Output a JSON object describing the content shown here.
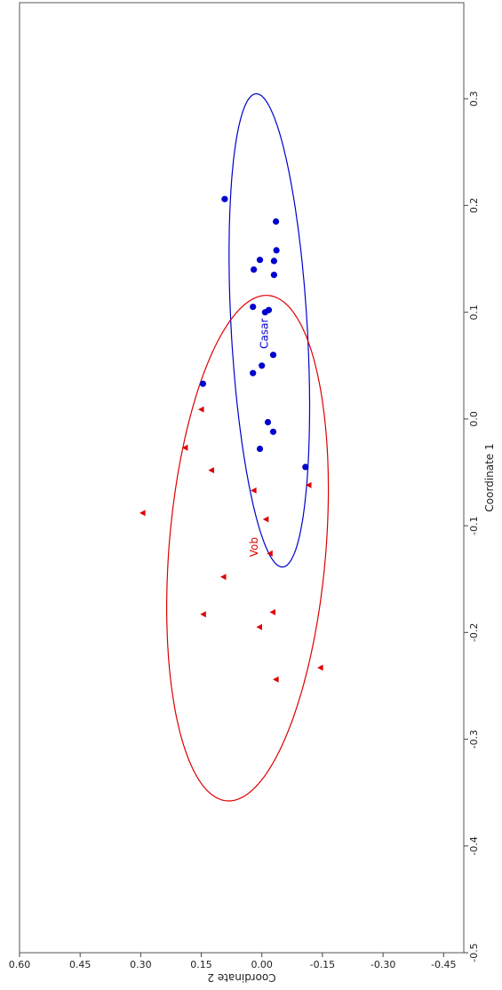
{
  "chart_data": {
    "type": "scatter",
    "orientation_note": "rotated-90",
    "xlabel": "Coordinate 1",
    "ylabel": "Coordinate 2",
    "xlim": [
      -0.5,
      0.39
    ],
    "ylim": [
      -0.5,
      0.6
    ],
    "x_ticks": [
      -0.5,
      -0.4,
      -0.3,
      -0.2,
      -0.1,
      0.0,
      0.1,
      0.2,
      0.3
    ],
    "x_tick_labels": [
      "-0.5",
      "-0.4",
      "-0.3",
      "-0.2",
      "-0.1",
      "0.0",
      "0.1",
      "0.2",
      "0.3"
    ],
    "y_ticks": [
      -0.45,
      -0.3,
      -0.15,
      0.0,
      0.15,
      0.3,
      0.45,
      0.6
    ],
    "y_tick_labels": [
      "-0.45",
      "-0.30",
      "-0.15",
      "0.00",
      "0.15",
      "0.30",
      "0.45",
      "0.60"
    ],
    "grid": false,
    "series": [
      {
        "name": "Casar",
        "marker": "circle",
        "color": "#0000cc",
        "label_pos": [
          0.08,
          -0.015
        ],
        "points": [
          [
            0.206,
            0.092
          ],
          [
            0.185,
            -0.035
          ],
          [
            0.158,
            -0.036
          ],
          [
            0.148,
            -0.03
          ],
          [
            0.149,
            0.005
          ],
          [
            0.14,
            0.02
          ],
          [
            0.135,
            -0.03
          ],
          [
            0.105,
            0.022
          ],
          [
            0.102,
            -0.017
          ],
          [
            0.1,
            -0.008
          ],
          [
            0.06,
            -0.028
          ],
          [
            0.05,
            0.0
          ],
          [
            0.043,
            0.022
          ],
          [
            0.033,
            0.146
          ],
          [
            -0.003,
            -0.015
          ],
          [
            -0.012,
            -0.028
          ],
          [
            -0.028,
            0.005
          ],
          [
            -0.045,
            -0.108
          ]
        ],
        "ellipse": {
          "center": [
            0.083,
            -0.0185
          ],
          "semi_major": 0.2245,
          "semi_minor": 0.0932,
          "angle_deg": 10.0
        }
      },
      {
        "name": "Vob",
        "marker": "triangle",
        "color": "#dd0000",
        "label_pos": [
          -0.12,
          0.01
        ],
        "points": [
          [
            0.009,
            0.15
          ],
          [
            -0.027,
            0.19
          ],
          [
            -0.048,
            0.125
          ],
          [
            -0.062,
            -0.116
          ],
          [
            -0.067,
            0.02
          ],
          [
            -0.088,
            0.295
          ],
          [
            -0.094,
            -0.01
          ],
          [
            -0.126,
            -0.02
          ],
          [
            -0.148,
            0.095
          ],
          [
            -0.183,
            0.145
          ],
          [
            -0.181,
            -0.027
          ],
          [
            -0.195,
            0.006
          ],
          [
            -0.233,
            -0.145
          ],
          [
            -0.244,
            -0.035
          ]
        ],
        "ellipse": {
          "center": [
            -0.121,
            0.0355
          ],
          "semi_major": 0.2484,
          "semi_minor": 0.1856,
          "angle_deg": -27.0
        }
      }
    ]
  }
}
